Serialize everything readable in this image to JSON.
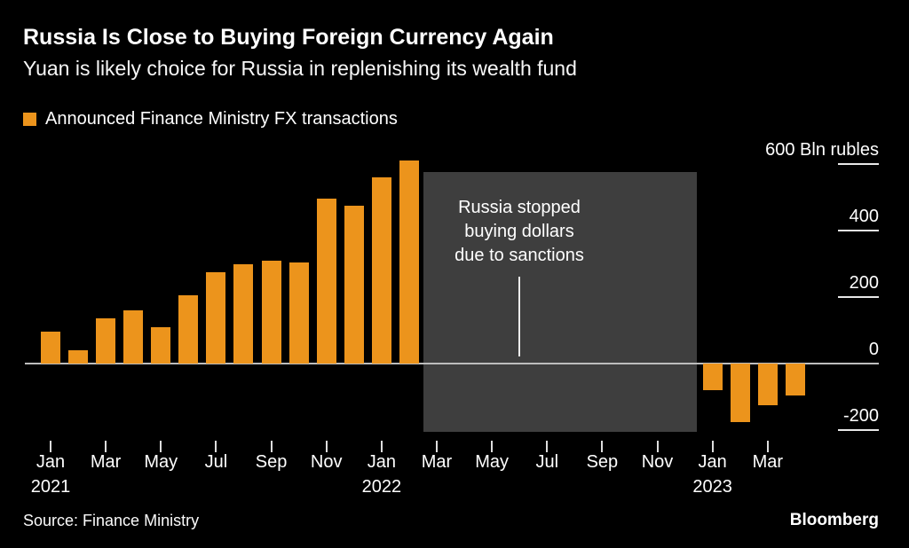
{
  "header": {
    "title": "Russia Is Close to Buying Foreign Currency Again",
    "subtitle": "Yuan is likely choice for Russia in replenishing its wealth fund"
  },
  "legend": {
    "label": "Announced Finance Ministry FX transactions",
    "color": "#EC941C"
  },
  "annotation": {
    "text": "Russia stopped\nbuying dollars\ndue to sanctions"
  },
  "y_axis": {
    "ticks": [
      {
        "value": 600,
        "label": "600 Bln rubles"
      },
      {
        "value": 400,
        "label": "400"
      },
      {
        "value": 200,
        "label": "200"
      },
      {
        "value": 0,
        "label": "0"
      },
      {
        "value": -200,
        "label": "-200"
      }
    ]
  },
  "x_axis": {
    "labels": [
      "Jan",
      "Mar",
      "May",
      "Jul",
      "Sep",
      "Nov",
      "Jan",
      "Mar",
      "May",
      "Jul",
      "Sep",
      "Nov",
      "Jan",
      "Mar"
    ],
    "years": [
      {
        "text": "2021",
        "month_index": 0
      },
      {
        "text": "2022",
        "month_index": 12
      },
      {
        "text": "2023",
        "month_index": 24
      }
    ]
  },
  "footer": {
    "source": "Source: Finance Ministry",
    "brand": "Bloomberg"
  },
  "chart_data": {
    "type": "bar",
    "title": "Russia Is Close to Buying Foreign Currency Again",
    "subtitle": "Yuan is likely choice for Russia in replenishing its wealth fund",
    "series_name": "Announced Finance Ministry FX transactions",
    "unit": "Bln rubles",
    "ylim": [
      -280,
      660
    ],
    "grid": false,
    "legend_position": "top-left",
    "bar_color": "#EC941C",
    "x": [
      "Jan 2021",
      "Feb 2021",
      "Mar 2021",
      "Apr 2021",
      "May 2021",
      "Jun 2021",
      "Jul 2021",
      "Aug 2021",
      "Sep 2021",
      "Oct 2021",
      "Nov 2021",
      "Dec 2021",
      "Jan 2022",
      "Feb 2022",
      "Mar 2022",
      "Apr 2022",
      "May 2022",
      "Jun 2022",
      "Jul 2022",
      "Aug 2022",
      "Sep 2022",
      "Oct 2022",
      "Nov 2022",
      "Dec 2022",
      "Jan 2023",
      "Feb 2023",
      "Mar 2023",
      "Apr 2023"
    ],
    "values": [
      95,
      40,
      135,
      160,
      110,
      205,
      275,
      300,
      310,
      305,
      495,
      475,
      560,
      610,
      null,
      null,
      null,
      null,
      null,
      null,
      null,
      null,
      null,
      null,
      -80,
      -175,
      -125,
      -95
    ],
    "shaded_region": {
      "from": "Mar 2022",
      "to": "Dec 2022",
      "label": "Russia stopped buying dollars due to sanctions"
    }
  }
}
